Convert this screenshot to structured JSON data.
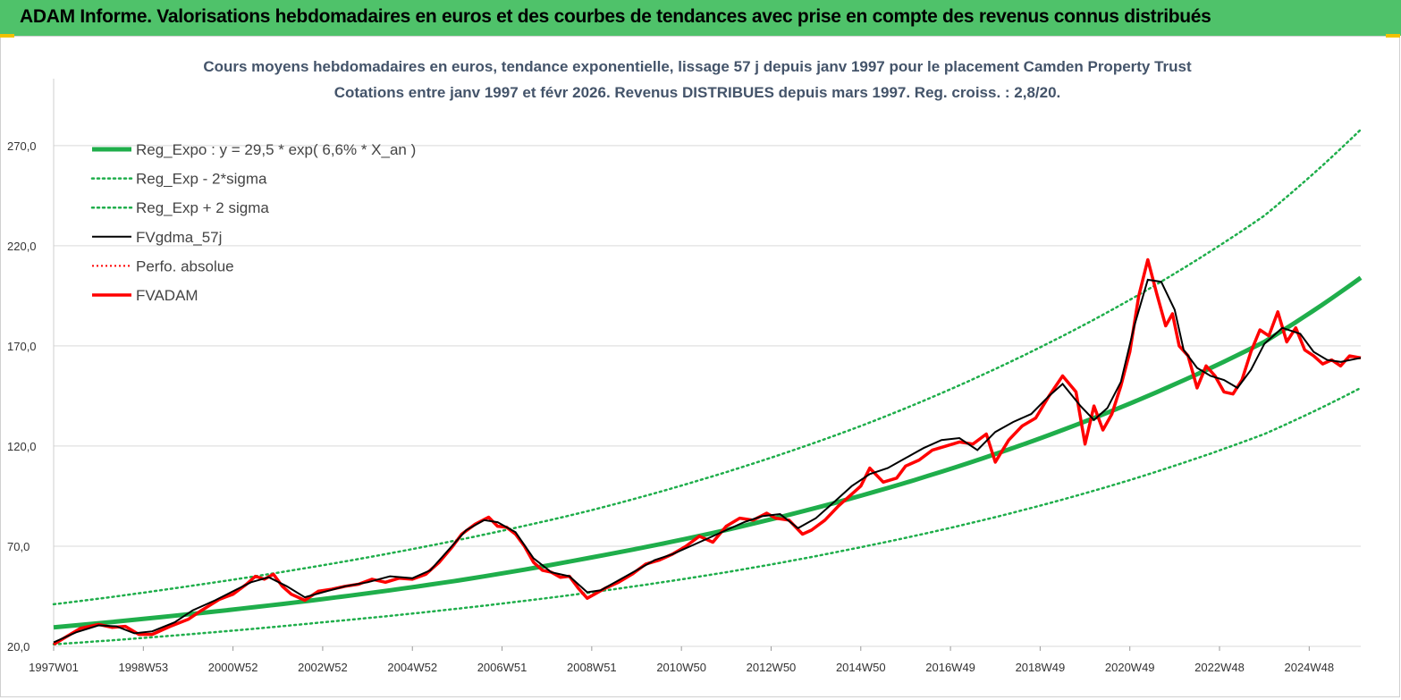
{
  "header": {
    "title": "ADAM Informe. Valorisations hebdomadaires en euros et des courbes de tendances avec prise en compte des revenus connus distribués"
  },
  "colors": {
    "banner": "#4fc26a",
    "trend_green": "#1fae4b",
    "actual_red": "#ff0000",
    "smooth_black": "#000000",
    "grid": "#d9d9d9"
  },
  "chart_data": {
    "type": "line",
    "title": "Cours moyens hebdomadaires en euros, tendance exponentielle, lissage 57 j depuis janv 1997 pour le placement Camden Property Trust",
    "subtitle": "Cotations entre janv 1997 et févr 2026. Revenus DISTRIBUES depuis mars 1997. Reg. croiss. : 2,8/20.",
    "xlabel": "",
    "ylabel": "",
    "x_range": [
      1997.0,
      2026.15
    ],
    "ylim": [
      20,
      290
    ],
    "y_ticks": [
      20,
      70,
      120,
      170,
      220,
      270
    ],
    "y_tick_labels": [
      "20,0",
      "70,0",
      "120,0",
      "170,0",
      "220,0",
      "270,0"
    ],
    "x_ticks": [
      1997.0,
      1999.0,
      2001.0,
      2003.0,
      2005.0,
      2007.0,
      2009.0,
      2011.0,
      2013.0,
      2015.0,
      2017.0,
      2019.0,
      2021.0,
      2023.0,
      2025.0
    ],
    "x_tick_labels": [
      "1997W01",
      "1998W53",
      "2000W52",
      "2002W52",
      "2004W52",
      "2006W51",
      "2008W51",
      "2010W50",
      "2012W50",
      "2014W50",
      "2016W49",
      "2018W49",
      "2020W49",
      "2022W48",
      "2024W48"
    ],
    "grid": "horizontal",
    "legend_position": "top-left",
    "series": [
      {
        "name": "Reg_Expo : y = 29,5 * exp( 6,6% *  X_an )",
        "style": "solid-thick",
        "x": [
          1997.0,
          2000.0,
          2003.0,
          2006.0,
          2009.0,
          2012.0,
          2015.0,
          2018.0,
          2021.0,
          2024.0,
          2026.15
        ],
        "values": [
          29.5,
          36.0,
          43.6,
          52.8,
          64.4,
          78.1,
          95.2,
          116.0,
          141.2,
          172.0,
          204.0
        ]
      },
      {
        "name": "Reg_Exp - 2*sigma",
        "style": "dotted",
        "x": [
          1997.0,
          2000.0,
          2003.0,
          2006.0,
          2009.0,
          2012.0,
          2015.0,
          2018.0,
          2021.0,
          2024.0,
          2026.15
        ],
        "values": [
          21.0,
          26.0,
          32.0,
          38.8,
          47.0,
          57.0,
          69.5,
          84.5,
          103.0,
          126.0,
          149.0
        ]
      },
      {
        "name": "Reg_Exp + 2 sigma",
        "style": "dotted",
        "x": [
          1997.0,
          2000.0,
          2003.0,
          2006.0,
          2009.0,
          2012.0,
          2015.0,
          2018.0,
          2021.0,
          2024.0,
          2026.15
        ],
        "values": [
          41.0,
          50.0,
          60.5,
          73.0,
          88.0,
          107.0,
          130.0,
          158.5,
          193.0,
          235.0,
          278.0
        ]
      },
      {
        "name": "FVgdma_57j",
        "style": "solid-thin",
        "x": [
          1997.0,
          1997.5,
          1998.0,
          1998.4,
          1998.8,
          1999.2,
          1999.7,
          2000.1,
          2000.6,
          2001.0,
          2001.4,
          2001.8,
          2002.2,
          2002.6,
          2003.0,
          2003.5,
          2004.0,
          2004.5,
          2005.0,
          2005.4,
          2005.8,
          2006.2,
          2006.6,
          2006.9,
          2007.3,
          2007.7,
          2008.1,
          2008.5,
          2008.9,
          2009.2,
          2009.6,
          2010.0,
          2010.4,
          2010.8,
          2011.2,
          2011.6,
          2012.0,
          2012.4,
          2012.8,
          2013.2,
          2013.6,
          2014.0,
          2014.4,
          2014.8,
          2015.2,
          2015.6,
          2016.0,
          2016.4,
          2016.8,
          2017.2,
          2017.6,
          2018.0,
          2018.4,
          2018.8,
          2019.2,
          2019.5,
          2019.9,
          2020.2,
          2020.5,
          2020.8,
          2021.1,
          2021.4,
          2021.7,
          2022.0,
          2022.2,
          2022.5,
          2022.8,
          2023.1,
          2023.4,
          2023.7,
          2024.0,
          2024.4,
          2024.8,
          2025.1,
          2025.4,
          2025.7,
          2026.15
        ],
        "values": [
          22.0,
          27.0,
          30.5,
          30.0,
          26.5,
          27.5,
          32.0,
          38.0,
          43.0,
          47.5,
          52.0,
          54.5,
          50.0,
          44.5,
          47.0,
          50.0,
          52.0,
          55.0,
          54.0,
          58.0,
          68.0,
          78.0,
          83.0,
          82.0,
          77.0,
          64.0,
          57.0,
          55.0,
          47.0,
          48.0,
          53.0,
          58.0,
          63.0,
          66.0,
          70.0,
          74.0,
          78.0,
          82.0,
          85.0,
          86.0,
          79.0,
          84.0,
          92.0,
          100.0,
          106.0,
          109.0,
          114.0,
          119.0,
          123.0,
          124.0,
          118.0,
          127.0,
          132.0,
          136.0,
          145.0,
          151.0,
          140.0,
          133.0,
          139.0,
          152.0,
          180.0,
          203.0,
          202.0,
          188.0,
          168.0,
          159.0,
          155.0,
          153.0,
          149.0,
          158.0,
          171.0,
          179.0,
          176.0,
          167.0,
          163.0,
          162.0,
          164.0
        ]
      },
      {
        "name": "Perfo. absolue",
        "style": "dotted-red",
        "x": [],
        "values": []
      },
      {
        "name": "FVADAM",
        "style": "solid-red",
        "x": [
          1997.0,
          1997.3,
          1997.6,
          1998.0,
          1998.3,
          1998.6,
          1998.9,
          1999.2,
          1999.6,
          2000.0,
          2000.3,
          2000.7,
          2001.0,
          2001.3,
          2001.5,
          2001.7,
          2001.9,
          2002.1,
          2002.3,
          2002.6,
          2002.9,
          2003.2,
          2003.5,
          2003.8,
          2004.1,
          2004.4,
          2004.7,
          2005.0,
          2005.3,
          2005.6,
          2005.9,
          2006.1,
          2006.4,
          2006.7,
          2006.9,
          2007.1,
          2007.3,
          2007.5,
          2007.7,
          2007.9,
          2008.1,
          2008.3,
          2008.5,
          2008.7,
          2008.9,
          2009.1,
          2009.3,
          2009.6,
          2009.9,
          2010.2,
          2010.5,
          2010.8,
          2011.1,
          2011.4,
          2011.7,
          2012.0,
          2012.3,
          2012.6,
          2012.9,
          2013.1,
          2013.4,
          2013.7,
          2013.9,
          2014.2,
          2014.5,
          2014.8,
          2015.0,
          2015.2,
          2015.5,
          2015.8,
          2016.0,
          2016.3,
          2016.6,
          2016.9,
          2017.2,
          2017.5,
          2017.8,
          2018.0,
          2018.3,
          2018.6,
          2018.9,
          2019.2,
          2019.5,
          2019.8,
          2020.0,
          2020.2,
          2020.4,
          2020.6,
          2020.8,
          2021.0,
          2021.2,
          2021.4,
          2021.6,
          2021.8,
          2021.95,
          2022.1,
          2022.3,
          2022.5,
          2022.7,
          2022.9,
          2023.1,
          2023.3,
          2023.5,
          2023.7,
          2023.9,
          2024.1,
          2024.3,
          2024.5,
          2024.7,
          2024.9,
          2025.1,
          2025.3,
          2025.5,
          2025.7,
          2025.9,
          2026.15
        ],
        "values": [
          21.0,
          25.0,
          29.0,
          31.0,
          29.5,
          30.0,
          26.0,
          26.0,
          30.0,
          33.5,
          38.0,
          43.5,
          46.0,
          51.0,
          55.0,
          53.5,
          56.0,
          50.0,
          46.0,
          43.0,
          47.5,
          48.5,
          50.0,
          51.0,
          53.5,
          52.0,
          54.0,
          53.5,
          56.0,
          62.0,
          70.0,
          76.0,
          81.0,
          84.5,
          80.0,
          79.5,
          76.0,
          70.0,
          62.0,
          58.0,
          57.0,
          54.5,
          55.0,
          49.0,
          44.0,
          46.5,
          49.0,
          52.0,
          56.0,
          61.0,
          63.0,
          66.0,
          70.0,
          75.0,
          72.0,
          80.0,
          84.0,
          83.0,
          86.5,
          84.0,
          83.0,
          76.0,
          78.0,
          83.0,
          90.0,
          96.0,
          100.0,
          109.0,
          102.0,
          104.0,
          110.0,
          113.0,
          118.0,
          120.0,
          122.0,
          121.0,
          126.0,
          112.0,
          123.0,
          130.0,
          134.0,
          145.0,
          155.0,
          147.0,
          121.0,
          140.0,
          128.0,
          136.0,
          150.0,
          167.0,
          195.0,
          213.0,
          196.0,
          180.0,
          186.0,
          170.0,
          165.0,
          149.0,
          160.0,
          155.0,
          147.0,
          146.0,
          153.0,
          167.0,
          178.0,
          175.0,
          187.0,
          172.0,
          179.0,
          168.0,
          165.0,
          161.0,
          163.0,
          160.0,
          165.0,
          164.0
        ]
      }
    ]
  }
}
